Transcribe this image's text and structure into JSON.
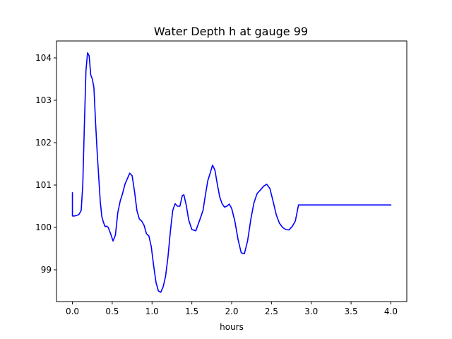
{
  "chart_data": {
    "type": "line",
    "title": "Water Depth h at gauge 99",
    "xlabel": "hours",
    "ylabel": "",
    "xlim": [
      -0.2,
      4.2
    ],
    "ylim": [
      98.25,
      104.4
    ],
    "xticks": [
      0.0,
      0.5,
      1.0,
      1.5,
      2.0,
      2.5,
      3.0,
      3.5,
      4.0
    ],
    "xtick_labels": [
      "0.0",
      "0.5",
      "1.0",
      "1.5",
      "2.0",
      "2.5",
      "3.0",
      "3.5",
      "4.0"
    ],
    "yticks": [
      99,
      100,
      101,
      102,
      103,
      104
    ],
    "ytick_labels": [
      "99",
      "100",
      "101",
      "102",
      "103",
      "104"
    ],
    "grid": false,
    "series": [
      {
        "color": "#0000ff",
        "x": [
          0.0,
          0.0,
          0.03,
          0.08,
          0.11,
          0.13,
          0.15,
          0.17,
          0.19,
          0.21,
          0.23,
          0.25,
          0.27,
          0.29,
          0.31,
          0.33,
          0.35,
          0.37,
          0.39,
          0.41,
          0.43,
          0.45,
          0.48,
          0.51,
          0.54,
          0.57,
          0.6,
          0.63,
          0.66,
          0.69,
          0.72,
          0.75,
          0.78,
          0.81,
          0.84,
          0.87,
          0.9,
          0.93,
          0.96,
          0.99,
          1.02,
          1.05,
          1.08,
          1.11,
          1.14,
          1.17,
          1.2,
          1.23,
          1.26,
          1.29,
          1.32,
          1.35,
          1.38,
          1.4,
          1.43,
          1.46,
          1.5,
          1.55,
          1.6,
          1.64,
          1.67,
          1.7,
          1.73,
          1.76,
          1.79,
          1.82,
          1.85,
          1.88,
          1.91,
          1.94,
          1.97,
          2.0,
          2.04,
          2.08,
          2.12,
          2.16,
          2.2,
          2.24,
          2.28,
          2.32,
          2.36,
          2.4,
          2.44,
          2.48,
          2.52,
          2.56,
          2.6,
          2.64,
          2.68,
          2.72,
          2.76,
          2.8,
          2.84,
          2.88,
          2.92,
          2.96,
          3.0,
          3.04,
          3.08,
          3.12,
          3.16,
          3.2,
          3.25,
          3.3,
          3.35,
          3.4,
          3.45,
          3.5,
          3.55,
          3.6,
          3.65,
          3.7,
          3.75,
          3.8,
          3.85,
          3.9,
          3.95,
          4.0
        ],
        "y": [
          100.82,
          100.27,
          100.27,
          100.3,
          100.4,
          101.0,
          102.4,
          103.7,
          104.12,
          104.05,
          103.6,
          103.5,
          103.3,
          102.5,
          101.8,
          101.2,
          100.6,
          100.25,
          100.12,
          100.02,
          100.03,
          100.0,
          99.85,
          99.68,
          99.82,
          100.35,
          100.62,
          100.8,
          101.02,
          101.15,
          101.28,
          101.22,
          100.85,
          100.4,
          100.2,
          100.15,
          100.05,
          99.85,
          99.8,
          99.55,
          99.1,
          98.7,
          98.5,
          98.47,
          98.6,
          98.85,
          99.3,
          99.9,
          100.4,
          100.56,
          100.5,
          100.5,
          100.75,
          100.77,
          100.52,
          100.18,
          99.95,
          99.92,
          100.18,
          100.4,
          100.76,
          101.1,
          101.28,
          101.47,
          101.35,
          101.02,
          100.72,
          100.56,
          100.48,
          100.5,
          100.55,
          100.45,
          100.15,
          99.72,
          99.4,
          99.38,
          99.68,
          100.18,
          100.58,
          100.8,
          100.88,
          100.97,
          101.02,
          100.92,
          100.62,
          100.3,
          100.1,
          100.0,
          99.95,
          99.94,
          100.02,
          100.15,
          100.53,
          100.53,
          100.53,
          100.53,
          100.53,
          100.53,
          100.53,
          100.53,
          100.53,
          100.53,
          100.53,
          100.53,
          100.53,
          100.53,
          100.53,
          100.53,
          100.53,
          100.53,
          100.53,
          100.53,
          100.53,
          100.53,
          100.53,
          100.53,
          100.53,
          100.53
        ]
      }
    ]
  }
}
